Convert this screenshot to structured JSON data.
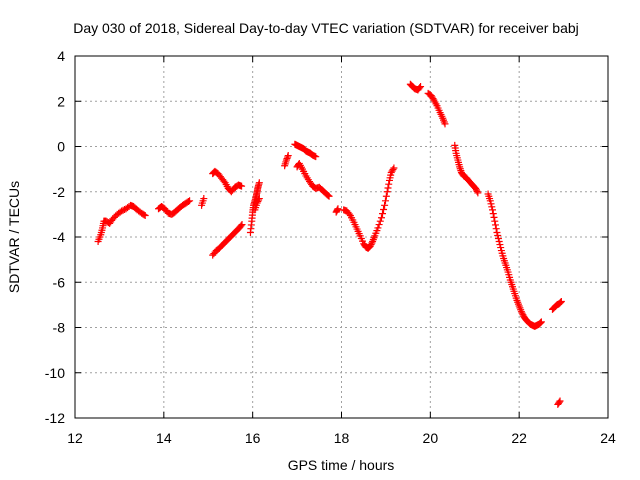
{
  "chart_data": {
    "type": "scatter",
    "title": "Day 030 of 2018, Sidereal Day-to-day VTEC variation (SDTVAR) for receiver babj",
    "xlabel": "GPS time / hours",
    "ylabel": "SDTVAR / TECUs",
    "xlim": [
      12,
      24
    ],
    "ylim": [
      -12,
      4
    ],
    "xticks": [
      12,
      14,
      16,
      18,
      20,
      22,
      24
    ],
    "yticks": [
      4,
      2,
      0,
      -2,
      -4,
      -6,
      -8,
      -10,
      -12
    ],
    "grid": true,
    "marker": "+",
    "color": "#ff0000",
    "series": [
      {
        "name": "SDTVAR",
        "segments": [
          {
            "x": [
              12.52,
              12.58,
              12.62,
              12.65,
              12.7,
              12.78,
              12.85,
              12.95,
              13.05,
              13.15,
              13.25,
              13.32,
              13.4,
              13.5,
              13.58
            ],
            "y": [
              -4.2,
              -3.9,
              -3.6,
              -3.3,
              -3.3,
              -3.4,
              -3.2,
              -3.0,
              -2.85,
              -2.75,
              -2.6,
              -2.65,
              -2.8,
              -2.95,
              -3.05
            ]
          },
          {
            "x": [
              13.88,
              13.95,
              14.02,
              14.1,
              14.18,
              14.25,
              14.33,
              14.42,
              14.5,
              14.58
            ],
            "y": [
              -2.75,
              -2.65,
              -2.75,
              -2.95,
              -3.0,
              -2.9,
              -2.75,
              -2.6,
              -2.5,
              -2.4
            ]
          },
          {
            "x": [
              14.85,
              14.9
            ],
            "y": [
              -2.6,
              -2.3
            ]
          },
          {
            "x": [
              15.1,
              15.18,
              15.25,
              15.32,
              15.4,
              15.47,
              15.55,
              15.62,
              15.7,
              15.76
            ],
            "y": [
              -4.8,
              -4.6,
              -4.5,
              -4.35,
              -4.2,
              -4.05,
              -3.9,
              -3.75,
              -3.6,
              -3.45
            ]
          },
          {
            "x": [
              15.1,
              15.15,
              15.22,
              15.3,
              15.38,
              15.45,
              15.52,
              15.6,
              15.68,
              15.75
            ],
            "y": [
              -1.2,
              -1.1,
              -1.2,
              -1.4,
              -1.6,
              -1.85,
              -2.0,
              -1.8,
              -1.7,
              -1.75
            ]
          },
          {
            "x": [
              15.95,
              15.98,
              16.0,
              16.02,
              16.05,
              16.08,
              16.1,
              16.12,
              16.15
            ],
            "y": [
              -3.8,
              -3.3,
              -2.9,
              -2.6,
              -2.4,
              -2.2,
              -2.0,
              -1.8,
              -1.6
            ]
          },
          {
            "x": [
              16.05,
              16.1,
              16.15
            ],
            "y": [
              -2.8,
              -2.5,
              -2.3
            ]
          },
          {
            "x": [
              16.72,
              16.76,
              16.8
            ],
            "y": [
              -0.85,
              -0.6,
              -0.4
            ]
          },
          {
            "x": [
              16.95,
              17.0,
              17.05,
              17.1,
              17.15,
              17.2,
              17.25,
              17.3,
              17.35,
              17.42
            ],
            "y": [
              0.1,
              0.05,
              0.0,
              -0.05,
              -0.1,
              -0.2,
              -0.25,
              -0.3,
              -0.38,
              -0.45
            ]
          },
          {
            "x": [
              17.0,
              17.05,
              17.12,
              17.2,
              17.28,
              17.35,
              17.42,
              17.5,
              17.58,
              17.66,
              17.72
            ],
            "y": [
              -0.9,
              -0.75,
              -1.0,
              -1.3,
              -1.55,
              -1.75,
              -1.85,
              -1.8,
              -1.95,
              -2.1,
              -2.2
            ]
          },
          {
            "x": [
              17.88,
              17.92
            ],
            "y": [
              -2.9,
              -2.75
            ]
          },
          {
            "x": [
              18.05,
              18.12,
              18.2,
              18.28,
              18.35,
              18.42,
              18.5,
              18.55,
              18.6,
              18.65,
              18.7,
              18.75,
              18.82,
              18.9,
              18.97,
              19.03,
              19.08,
              19.12,
              19.18
            ],
            "y": [
              -2.8,
              -2.85,
              -3.05,
              -3.35,
              -3.65,
              -3.95,
              -4.3,
              -4.45,
              -4.5,
              -4.4,
              -4.2,
              -3.95,
              -3.6,
              -3.15,
              -2.6,
              -2.0,
              -1.5,
              -1.15,
              -0.95
            ]
          },
          {
            "x": [
              19.55,
              19.6,
              19.65,
              19.72,
              19.78
            ],
            "y": [
              2.75,
              2.65,
              2.55,
              2.5,
              2.65
            ]
          },
          {
            "x": [
              19.95,
              20.02,
              20.08,
              20.15,
              20.22,
              20.28,
              20.33
            ],
            "y": [
              2.35,
              2.25,
              2.05,
              1.8,
              1.5,
              1.25,
              1.0
            ]
          },
          {
            "x": [
              20.55,
              20.58,
              20.62,
              20.66,
              20.7,
              20.75,
              20.82,
              20.88,
              20.95,
              21.02,
              21.07
            ],
            "y": [
              0.05,
              -0.3,
              -0.6,
              -0.9,
              -1.15,
              -1.3,
              -1.4,
              -1.55,
              -1.7,
              -1.85,
              -2.05
            ]
          },
          {
            "x": [
              21.3,
              21.35,
              21.4,
              21.45,
              21.5,
              21.55,
              21.6,
              21.65,
              21.7,
              21.75,
              21.8,
              21.85,
              21.9,
              21.95,
              22.0,
              22.05,
              22.1,
              22.15,
              22.2,
              22.25,
              22.3,
              22.35,
              22.4,
              22.45,
              22.5
            ],
            "y": [
              -2.1,
              -2.4,
              -2.8,
              -3.3,
              -3.8,
              -4.2,
              -4.6,
              -4.95,
              -5.25,
              -5.55,
              -5.9,
              -6.2,
              -6.5,
              -6.8,
              -7.05,
              -7.3,
              -7.5,
              -7.65,
              -7.75,
              -7.85,
              -7.9,
              -7.95,
              -7.9,
              -7.85,
              -7.75
            ]
          },
          {
            "x": [
              22.75,
              22.8,
              22.85,
              22.9,
              22.95
            ],
            "y": [
              -7.2,
              -7.1,
              -7.0,
              -6.95,
              -6.85
            ]
          },
          {
            "x": [
              22.87,
              22.92
            ],
            "y": [
              -11.4,
              -11.25
            ]
          }
        ]
      }
    ]
  }
}
